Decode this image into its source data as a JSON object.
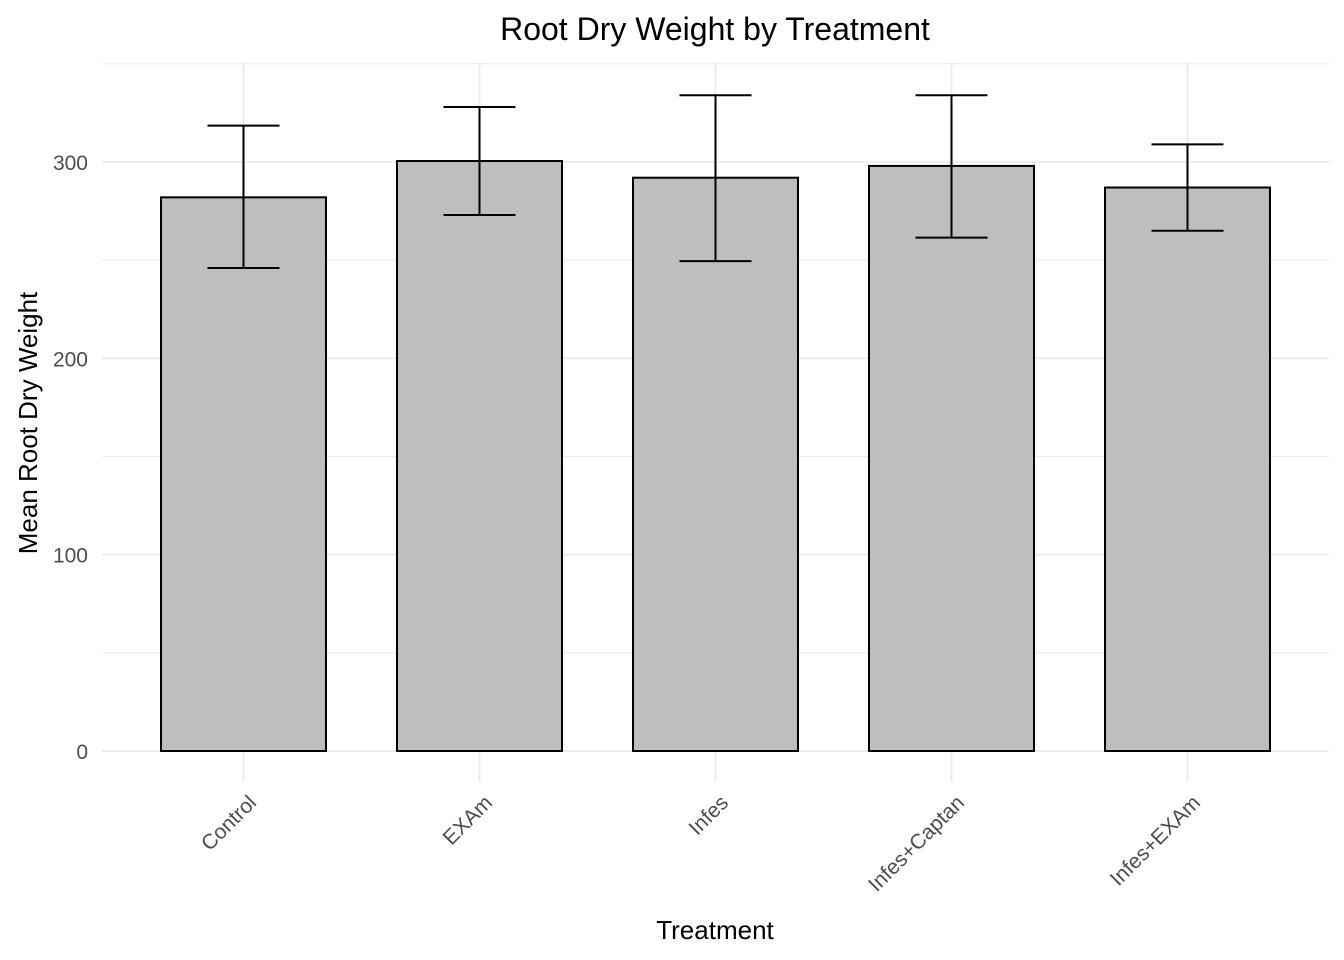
{
  "chart_data": {
    "type": "bar",
    "title": "Root Dry Weight by Treatment",
    "xlabel": "Treatment",
    "ylabel": "Mean Root Dry Weight",
    "categories": [
      "Control",
      "EXAm",
      "Infes",
      "Infes+Captan",
      "Infes+EXAm"
    ],
    "values": [
      282,
      300.5,
      292,
      298,
      287
    ],
    "error_low": [
      246,
      273,
      249.5,
      261.5,
      265
    ],
    "error_high": [
      318.5,
      328,
      334,
      334,
      309
    ],
    "yticks": [
      0,
      100,
      200,
      300
    ],
    "ylim": [
      -16,
      351
    ],
    "grid": true,
    "bar_color": "#bebebe",
    "bar_outline": "#000000",
    "grid_color": "#ebebeb"
  }
}
